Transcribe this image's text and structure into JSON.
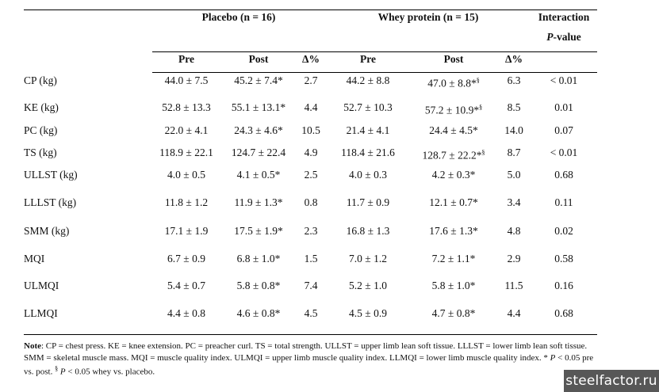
{
  "table": {
    "group_headers": {
      "placebo": "Placebo (n = 16)",
      "whey": "Whey protein (n = 15)",
      "interaction_line1": "Interaction",
      "interaction_p": "P",
      "interaction_rest": "-value"
    },
    "sub_headers": [
      "Pre",
      "Post",
      "Δ%",
      "Pre",
      "Post",
      "Δ%"
    ],
    "rows": [
      {
        "label": "CP (kg)",
        "pla_pre": "44.0 ± 7.5",
        "pla_post": "45.2 ± 7.4*",
        "pla_delta": "2.7",
        "whey_pre": "44.2 ± 8.8",
        "whey_post": "47.0 ± 8.8*",
        "whey_sup": "§",
        "whey_delta": "6.3",
        "p": "< 0.01"
      },
      {
        "label": "KE (kg)",
        "pla_pre": "52.8 ± 13.3",
        "pla_post": "55.1 ± 13.1*",
        "pla_delta": "4.4",
        "whey_pre": "52.7 ± 10.3",
        "whey_post": "57.2 ± 10.9*",
        "whey_sup": "§",
        "whey_delta": "8.5",
        "p": "0.01"
      },
      {
        "label": "PC (kg)",
        "pla_pre": "22.0 ± 4.1",
        "pla_post": "24.3 ± 4.6*",
        "pla_delta": "10.5",
        "whey_pre": "21.4 ± 4.1",
        "whey_post": "24.4 ± 4.5*",
        "whey_sup": "",
        "whey_delta": "14.0",
        "p": "0.07"
      },
      {
        "label": "TS (kg)",
        "pla_pre": "118.9 ± 22.1",
        "pla_post": "124.7 ± 22.4",
        "pla_delta": "4.9",
        "whey_pre": "118.4 ± 21.6",
        "whey_post": "128.7 ± 22.2*",
        "whey_sup": "§",
        "whey_delta": "8.7",
        "p": "< 0.01"
      },
      {
        "label": "ULLST (kg)",
        "pla_pre": "4.0 ± 0.5",
        "pla_post": "4.1 ± 0.5*",
        "pla_delta": "2.5",
        "whey_pre": "4.0 ± 0.3",
        "whey_post": "4.2 ± 0.3*",
        "whey_sup": "",
        "whey_delta": "5.0",
        "p": "0.68"
      },
      {
        "label": "LLLST (kg)",
        "pla_pre": "11.8 ± 1.2",
        "pla_post": "11.9 ± 1.3*",
        "pla_delta": "0.8",
        "whey_pre": "11.7 ± 0.9",
        "whey_post": "12.1 ± 0.7*",
        "whey_sup": "",
        "whey_delta": "3.4",
        "p": "0.11"
      },
      {
        "label": "SMM (kg)",
        "pla_pre": "17.1 ± 1.9",
        "pla_post": "17.5 ± 1.9*",
        "pla_delta": "2.3",
        "whey_pre": "16.8 ± 1.3",
        "whey_post": "17.6 ± 1.3*",
        "whey_sup": "",
        "whey_delta": "4.8",
        "p": "0.02"
      },
      {
        "label": "MQI",
        "pla_pre": "6.7 ± 0.9",
        "pla_post": "6.8 ± 1.0*",
        "pla_delta": "1.5",
        "whey_pre": "7.0 ± 1.2",
        "whey_post": "7.2 ± 1.1*",
        "whey_sup": "",
        "whey_delta": "2.9",
        "p": "0.58"
      },
      {
        "label": "ULMQI",
        "pla_pre": "5.4 ± 0.7",
        "pla_post": "5.8 ± 0.8*",
        "pla_delta": "7.4",
        "whey_pre": "5.2 ± 1.0",
        "whey_post": "5.8 ± 1.0*",
        "whey_sup": "",
        "whey_delta": "11.5",
        "p": "0.16"
      },
      {
        "label": "LLMQI",
        "pla_pre": "4.4 ± 0.8",
        "pla_post": "4.6 ± 0.8*",
        "pla_delta": "4.5",
        "whey_pre": "4.5 ± 0.9",
        "whey_post": "4.7 ± 0.8*",
        "whey_sup": "",
        "whey_delta": "4.4",
        "p": "0.68"
      }
    ]
  },
  "note": {
    "label": "Note",
    "part1": ": CP = chest press. KE = knee extension. PC = preacher curl. TS = total strength. ULLST = upper limb lean soft tissue. LLLST = lower limb lean soft tissue. SMM = skeletal muscle mass. MQI = muscle quality index. ULMQI = upper limb muscle quality index. LLMQI = lower limb muscle quality index. * ",
    "p1": "P",
    "part2": " < 0.05 pre vs. post. ",
    "sup": "§",
    "p2": "P",
    "part3": " < 0.05 whey vs. placebo."
  },
  "watermark": "steelfactor.ru"
}
